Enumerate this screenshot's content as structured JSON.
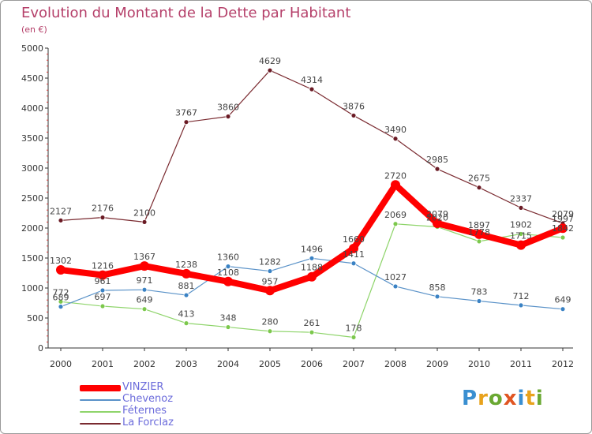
{
  "page": {
    "title": "Evolution du Montant de la Dette par Habitant",
    "unit": "(en €)"
  },
  "logo": {
    "text": "Proxiti",
    "letter_colors": [
      "#3a8fd1",
      "#e8a21c",
      "#6aa832",
      "#e05522",
      "#3a8fd1",
      "#e8a21c",
      "#6aa832"
    ]
  },
  "chart_data": {
    "type": "line",
    "title": "Evolution du Montant de la Dette par Habitant",
    "subtitle": "(en €)",
    "xlabel": "",
    "ylabel": "",
    "x": [
      2000,
      2001,
      2002,
      2003,
      2004,
      2005,
      2006,
      2007,
      2008,
      2009,
      2010,
      2011,
      2012
    ],
    "ylim": [
      0,
      5000
    ],
    "yticks": [
      0,
      500,
      1000,
      1500,
      2000,
      2500,
      3000,
      3500,
      4000,
      4500,
      5000
    ],
    "grid": false,
    "legend_position": "bottom-left",
    "series": [
      {
        "name": "La Forclaz",
        "color": "#7a2a30",
        "dot_color": "#6a1a24",
        "values": [
          2127,
          2176,
          2100,
          3767,
          3860,
          4629,
          4314,
          3876,
          3490,
          2985,
          2675,
          2337,
          2079
        ]
      },
      {
        "name": "Féternes",
        "color": "#8ed46a",
        "dot_color": "#7cc84c",
        "values": [
          772,
          697,
          649,
          413,
          348,
          280,
          261,
          178,
          2069,
          2020,
          1778,
          1902,
          1842
        ]
      },
      {
        "name": "Chevenoz",
        "color": "#5a92c8",
        "dot_color": "#3a82c4",
        "values": [
          689,
          961,
          971,
          881,
          1360,
          1282,
          1496,
          1411,
          1027,
          858,
          783,
          712,
          649
        ]
      },
      {
        "name": "VINZIER",
        "color": "#ff0000",
        "dot_color": "#ff0000",
        "values": [
          1302,
          1216,
          1367,
          1238,
          1108,
          957,
          1188,
          1660,
          2720,
          2079,
          1897,
          1715,
          1997
        ]
      }
    ],
    "legend_order": [
      "VINZIER",
      "Chevenoz",
      "Féternes",
      "La Forclaz"
    ]
  }
}
